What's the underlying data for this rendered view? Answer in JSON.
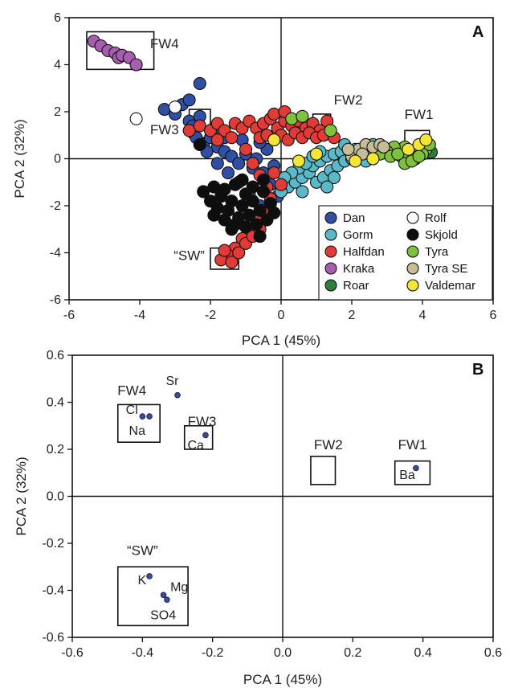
{
  "chart_data": [
    {
      "type": "scatter",
      "panel": "A",
      "xlabel": "PCA 1 (45%)",
      "ylabel": "PCA 2 (32%)",
      "xlim": [
        -6,
        6
      ],
      "ylim": [
        -6,
        6
      ],
      "xticks": [
        -6,
        -4,
        -2,
        0,
        2,
        4,
        6
      ],
      "yticks": [
        -6,
        -4,
        -2,
        0,
        2,
        4,
        6
      ],
      "legend_position": "bottom-right",
      "series": [
        {
          "name": "Dan",
          "color": "#2e4fa3",
          "points": [
            [
              -3.3,
              2.1
            ],
            [
              -3.0,
              1.9
            ],
            [
              -2.8,
              2.3
            ],
            [
              -2.6,
              1.6
            ],
            [
              -2.3,
              3.2
            ],
            [
              -2.6,
              2.5
            ],
            [
              -2.5,
              1.4
            ],
            [
              -2.4,
              0.9
            ],
            [
              -2.2,
              0.6
            ],
            [
              -2.0,
              0.9
            ],
            [
              -1.8,
              0.5
            ],
            [
              -1.6,
              0.3
            ],
            [
              -1.4,
              0.1
            ],
            [
              -1.2,
              -0.2
            ],
            [
              -1.0,
              0.2
            ],
            [
              -0.8,
              -0.4
            ],
            [
              -0.7,
              0.0
            ],
            [
              -0.5,
              -0.6
            ],
            [
              -0.3,
              -1.1
            ],
            [
              -0.2,
              -0.3
            ],
            [
              -0.4,
              0.4
            ],
            [
              -0.6,
              0.7
            ],
            [
              -1.1,
              0.8
            ],
            [
              -1.6,
              0.9
            ],
            [
              -1.9,
              1.3
            ],
            [
              -2.1,
              0.3
            ],
            [
              -1.5,
              -0.6
            ],
            [
              -1.2,
              -1.0
            ],
            [
              -0.9,
              -1.5
            ],
            [
              -0.6,
              -2.0
            ],
            [
              -0.1,
              -1.6
            ],
            [
              -1.8,
              -0.2
            ],
            [
              -2.3,
              1.8
            ]
          ]
        },
        {
          "name": "Gorm",
          "color": "#5ab9c8",
          "points": [
            [
              0.2,
              -1.2
            ],
            [
              0.4,
              -1.0
            ],
            [
              0.6,
              -0.8
            ],
            [
              0.8,
              -0.6
            ],
            [
              0.9,
              -0.3
            ],
            [
              1.1,
              -0.1
            ],
            [
              1.3,
              0.1
            ],
            [
              1.5,
              0.2
            ],
            [
              1.7,
              0.3
            ],
            [
              1.9,
              0.4
            ],
            [
              2.1,
              0.4
            ],
            [
              2.3,
              0.3
            ],
            [
              2.5,
              0.3
            ],
            [
              2.7,
              0.2
            ],
            [
              1.0,
              -1.0
            ],
            [
              1.2,
              -0.8
            ],
            [
              1.4,
              -0.5
            ],
            [
              1.6,
              -0.3
            ],
            [
              1.8,
              -0.1
            ],
            [
              2.0,
              0.0
            ],
            [
              2.2,
              0.1
            ],
            [
              0.5,
              -0.4
            ],
            [
              0.7,
              -0.2
            ],
            [
              0.9,
              0.1
            ],
            [
              1.1,
              0.3
            ],
            [
              0.3,
              -0.6
            ],
            [
              0.1,
              -0.8
            ],
            [
              1.5,
              -0.8
            ],
            [
              2.4,
              -0.1
            ],
            [
              2.6,
              0.6
            ],
            [
              1.3,
              -1.2
            ],
            [
              0.0,
              -1.4
            ],
            [
              1.8,
              0.6
            ],
            [
              0.6,
              -1.4
            ]
          ]
        },
        {
          "name": "Halfdan",
          "color": "#e03b36",
          "points": [
            [
              -2.6,
              1.2
            ],
            [
              -2.3,
              1.4
            ],
            [
              -2.0,
              1.2
            ],
            [
              -1.8,
              1.5
            ],
            [
              -1.6,
              1.2
            ],
            [
              -1.3,
              1.5
            ],
            [
              -1.1,
              1.3
            ],
            [
              -0.9,
              1.6
            ],
            [
              -0.7,
              1.3
            ],
            [
              -0.5,
              1.5
            ],
            [
              -0.3,
              1.7
            ],
            [
              -0.1,
              1.3
            ],
            [
              0.1,
              1.6
            ],
            [
              0.3,
              1.4
            ],
            [
              0.5,
              1.6
            ],
            [
              0.7,
              1.3
            ],
            [
              0.9,
              1.5
            ],
            [
              1.1,
              1.2
            ],
            [
              1.3,
              1.6
            ],
            [
              -0.6,
              0.9
            ],
            [
              -0.4,
              1.0
            ],
            [
              -0.2,
              0.8
            ],
            [
              0.0,
              1.0
            ],
            [
              0.2,
              0.8
            ],
            [
              0.4,
              1.1
            ],
            [
              0.6,
              0.9
            ],
            [
              0.8,
              1.1
            ],
            [
              1.0,
              0.9
            ],
            [
              1.2,
              1.0
            ],
            [
              -0.2,
              1.9
            ],
            [
              0.1,
              2.0
            ],
            [
              -1.4,
              0.9
            ],
            [
              -1.0,
              0.4
            ],
            [
              -0.8,
              -0.2
            ],
            [
              -0.6,
              -0.7
            ],
            [
              -0.4,
              -1.2
            ],
            [
              -0.3,
              -1.7
            ],
            [
              -0.5,
              -2.2
            ],
            [
              -0.7,
              -2.6
            ],
            [
              -0.9,
              -3.0
            ],
            [
              -1.1,
              -3.4
            ],
            [
              -1.3,
              -3.8
            ],
            [
              -1.5,
              -4.1
            ],
            [
              -1.7,
              -4.3
            ],
            [
              -1.4,
              -4.4
            ],
            [
              -1.2,
              -4.0
            ],
            [
              -1.6,
              -3.9
            ],
            [
              -1.0,
              -3.6
            ],
            [
              -0.8,
              -3.3
            ],
            [
              -0.6,
              -3.0
            ],
            [
              -0.2,
              -0.6
            ],
            [
              0.0,
              -1.1
            ],
            [
              -1.8,
              0.8
            ],
            [
              1.5,
              0.9
            ]
          ]
        },
        {
          "name": "Kraka",
          "color": "#a85eb0",
          "points": [
            [
              -5.3,
              5.0
            ],
            [
              -5.1,
              4.8
            ],
            [
              -4.9,
              4.6
            ],
            [
              -4.7,
              4.5
            ],
            [
              -4.6,
              4.3
            ],
            [
              -4.5,
              4.4
            ],
            [
              -4.3,
              4.3
            ],
            [
              -4.1,
              4.0
            ]
          ]
        },
        {
          "name": "Roar",
          "color": "#2f7d3c",
          "points": [
            [
              4.25,
              0.28
            ]
          ]
        },
        {
          "name": "Rolf",
          "color": "#ffffff",
          "points": [
            [
              -4.1,
              1.7
            ],
            [
              -3.0,
              2.2
            ]
          ]
        },
        {
          "name": "Skjold",
          "color": "#0e0e0e",
          "points": [
            [
              -1.9,
              -1.2
            ],
            [
              -1.6,
              -1.3
            ],
            [
              -1.3,
              -1.1
            ],
            [
              -1.0,
              -1.5
            ],
            [
              -0.8,
              -1.8
            ],
            [
              -0.5,
              -1.4
            ],
            [
              -0.3,
              -1.9
            ],
            [
              -1.7,
              -1.6
            ],
            [
              -1.4,
              -1.8
            ],
            [
              -1.1,
              -2.0
            ],
            [
              -0.9,
              -2.4
            ],
            [
              -0.6,
              -2.2
            ],
            [
              -0.4,
              -2.6
            ],
            [
              -1.5,
              -2.2
            ],
            [
              -1.2,
              -2.5
            ],
            [
              -1.0,
              -2.9
            ],
            [
              -0.7,
              -2.8
            ],
            [
              -2.0,
              -1.8
            ],
            [
              -1.8,
              -2.1
            ],
            [
              -1.3,
              -2.8
            ],
            [
              -1.6,
              -2.6
            ],
            [
              -0.2,
              -2.3
            ],
            [
              -2.2,
              -1.4
            ],
            [
              -0.8,
              -1.2
            ],
            [
              -1.1,
              -0.9
            ],
            [
              -1.9,
              -2.4
            ],
            [
              -1.4,
              -3.0
            ],
            [
              -0.5,
              -0.9
            ],
            [
              -2.3,
              0.6
            ],
            [
              -0.6,
              -3.3
            ]
          ]
        },
        {
          "name": "Tyra",
          "color": "#7ec13c",
          "points": [
            [
              3.3,
              0.4
            ],
            [
              3.5,
              0.5
            ],
            [
              3.7,
              0.3
            ],
            [
              3.9,
              0.5
            ],
            [
              4.1,
              0.4
            ],
            [
              3.4,
              0.1
            ],
            [
              3.6,
              0.2
            ],
            [
              3.8,
              0.0
            ],
            [
              4.0,
              0.2
            ],
            [
              3.2,
              0.5
            ],
            [
              3.0,
              0.3
            ],
            [
              3.5,
              -0.2
            ],
            [
              3.7,
              -0.1
            ],
            [
              3.9,
              0.1
            ],
            [
              2.8,
              0.2
            ],
            [
              3.1,
              0.1
            ],
            [
              0.3,
              1.7
            ],
            [
              0.6,
              1.8
            ],
            [
              1.4,
              1.2
            ],
            [
              4.2,
              0.6
            ],
            [
              3.3,
              0.2
            ]
          ]
        },
        {
          "name": "Tyra SE",
          "color": "#c4bd97",
          "points": [
            [
              2.0,
              0.1
            ],
            [
              2.2,
              0.4
            ],
            [
              2.4,
              0.6
            ],
            [
              2.6,
              0.5
            ],
            [
              2.8,
              0.6
            ],
            [
              1.9,
              0.4
            ],
            [
              2.3,
              0.2
            ],
            [
              2.9,
              0.5
            ]
          ]
        },
        {
          "name": "Valdemar",
          "color": "#f5e633",
          "points": [
            [
              -0.2,
              0.8
            ],
            [
              0.5,
              -0.1
            ],
            [
              1.0,
              0.2
            ],
            [
              2.1,
              -0.1
            ],
            [
              2.6,
              0.0
            ],
            [
              3.6,
              0.4
            ],
            [
              3.9,
              0.6
            ],
            [
              4.1,
              0.8
            ]
          ]
        }
      ],
      "annotations": [
        {
          "label": "FW1",
          "label_at": [
            3.9,
            1.7
          ],
          "box": [
            3.5,
            0.0,
            4.2,
            1.2
          ]
        },
        {
          "label": "FW2",
          "label_at": [
            1.9,
            2.3
          ],
          "box": [
            0.9,
            0.9,
            1.4,
            1.9
          ]
        },
        {
          "label": "FW3",
          "label_at": [
            -3.3,
            1.05
          ],
          "box": [
            -2.6,
            0.9,
            -2.0,
            2.1
          ]
        },
        {
          "label": "FW4",
          "label_at": [
            -3.3,
            4.7
          ],
          "box": [
            -5.5,
            3.8,
            -3.6,
            5.4
          ]
        },
        {
          "label": "“SW”",
          "label_at": [
            -2.6,
            -4.3
          ],
          "box": [
            -2.0,
            -4.7,
            -1.2,
            -3.8
          ]
        }
      ]
    },
    {
      "type": "scatter",
      "panel": "B",
      "xlabel": "PCA 1 (45%)",
      "ylabel": "PCA 2 (32%)",
      "xlim": [
        -0.6,
        0.6
      ],
      "ylim": [
        -0.6,
        0.6
      ],
      "xticks": [
        -0.6,
        -0.4,
        -0.2,
        0.0,
        0.2,
        0.4,
        0.6
      ],
      "yticks": [
        -0.6,
        -0.4,
        -0.2,
        0.0,
        0.2,
        0.4,
        0.6
      ],
      "xtick_labels": [
        "-0.6",
        "-0.4",
        "-0.2",
        "0.0",
        "0.2",
        "0.4",
        "0.6"
      ],
      "ytick_labels": [
        "-0.6",
        "-0.4",
        "-0.2",
        "0.0",
        "0.2",
        "0.4",
        "0.6"
      ],
      "color": "#3b4a9a",
      "points": [
        {
          "name": "Cl",
          "x": -0.4,
          "y": 0.34,
          "label_at": [
            -0.43,
            0.35
          ]
        },
        {
          "name": "Na",
          "x": -0.38,
          "y": 0.34,
          "label_at": [
            -0.415,
            0.262
          ]
        },
        {
          "name": "Sr",
          "x": -0.3,
          "y": 0.43,
          "label_at": [
            -0.315,
            0.474
          ]
        },
        {
          "name": "Ca",
          "x": -0.22,
          "y": 0.26,
          "label_at": [
            -0.248,
            0.2
          ]
        },
        {
          "name": "Ba",
          "x": 0.38,
          "y": 0.12,
          "label_at": [
            0.355,
            0.074
          ]
        },
        {
          "name": "K",
          "x": -0.38,
          "y": -0.34,
          "label_at": [
            -0.401,
            -0.374
          ]
        },
        {
          "name": "Mg",
          "x": -0.34,
          "y": -0.42,
          "label_at": [
            -0.295,
            -0.404
          ]
        },
        {
          "name": "SO4",
          "x": -0.33,
          "y": -0.44,
          "label_at": [
            -0.341,
            -0.523
          ]
        }
      ],
      "annotations": [
        {
          "label": "FW1",
          "label_at": [
            0.37,
            0.2
          ],
          "box": [
            0.32,
            0.05,
            0.42,
            0.15
          ]
        },
        {
          "label": "FW2",
          "label_at": [
            0.13,
            0.2
          ],
          "box": [
            0.08,
            0.05,
            0.15,
            0.17
          ]
        },
        {
          "label": "FW3",
          "label_at": [
            -0.23,
            0.3
          ],
          "box": [
            -0.28,
            0.2,
            -0.2,
            0.3
          ]
        },
        {
          "label": "FW4",
          "label_at": [
            -0.43,
            0.43
          ],
          "box": [
            -0.47,
            0.23,
            -0.35,
            0.39
          ]
        },
        {
          "label": "“SW”",
          "label_at": [
            -0.4,
            -0.25
          ],
          "box": [
            -0.47,
            -0.55,
            -0.27,
            -0.3
          ]
        }
      ]
    }
  ]
}
